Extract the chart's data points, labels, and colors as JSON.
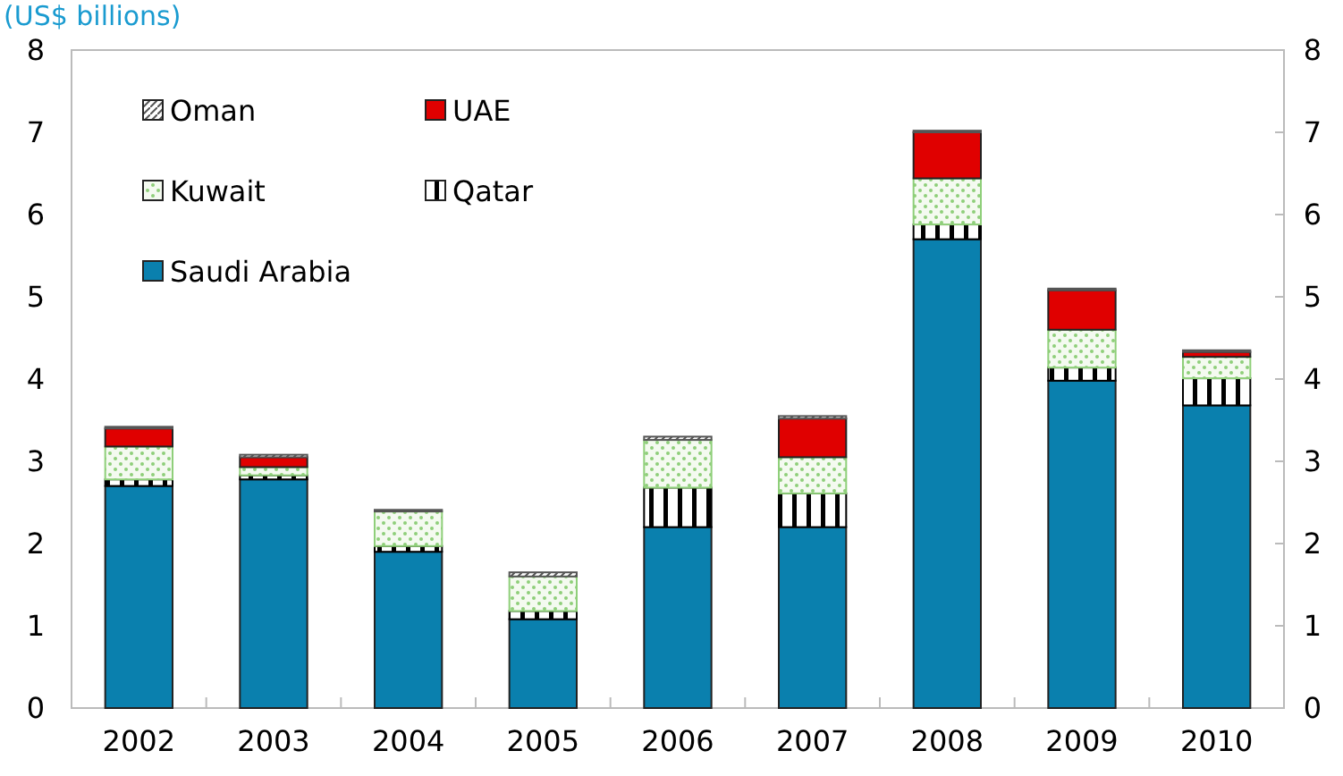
{
  "chart_data": {
    "type": "bar",
    "stacked": true,
    "ylabel": "(US$ billions)",
    "categories": [
      "2002",
      "2003",
      "2004",
      "2005",
      "2006",
      "2007",
      "2008",
      "2009",
      "2010"
    ],
    "series": [
      {
        "name": "Saudi Arabia",
        "color": "#0a80ae",
        "values": [
          2.7,
          2.78,
          1.9,
          1.08,
          2.2,
          2.2,
          5.7,
          3.98,
          3.68
        ]
      },
      {
        "name": "Qatar",
        "color": "#000000",
        "values": [
          0.08,
          0.05,
          0.07,
          0.1,
          0.48,
          0.41,
          0.18,
          0.16,
          0.33
        ]
      },
      {
        "name": "Kuwait",
        "color": "#8fcf7a",
        "values": [
          0.4,
          0.1,
          0.42,
          0.42,
          0.58,
          0.44,
          0.56,
          0.46,
          0.26
        ]
      },
      {
        "name": "UAE",
        "color": "#e00000",
        "values": [
          0.22,
          0.12,
          0,
          0,
          0,
          0.47,
          0.56,
          0.48,
          0.06
        ]
      },
      {
        "name": "Oman",
        "color": "#555555",
        "values": [
          0.02,
          0.03,
          0.02,
          0.05,
          0.04,
          0.03,
          0.02,
          0.02,
          0.02
        ]
      }
    ],
    "ylim": [
      0,
      8
    ],
    "yticks": [
      0,
      1,
      2,
      3,
      4,
      5,
      6,
      7,
      8
    ],
    "y2lim": [
      0,
      8
    ],
    "y2ticks": [
      0,
      1,
      2,
      3,
      4,
      5,
      6,
      7,
      8
    ],
    "grid": false,
    "legend": "top left"
  }
}
